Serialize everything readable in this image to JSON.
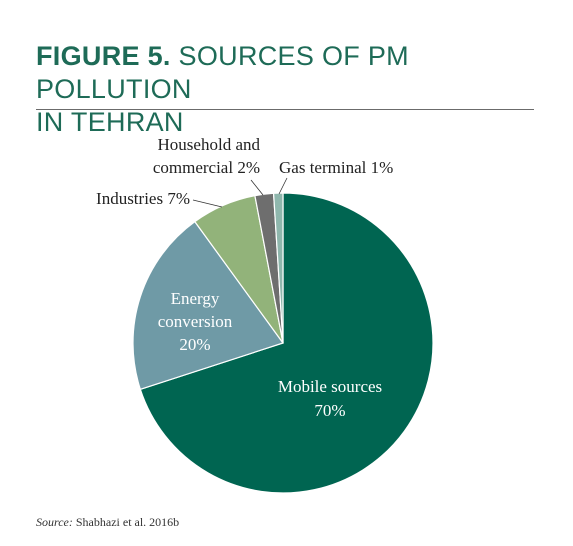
{
  "figure": {
    "number": "FIGURE 5.",
    "title_line1": "SOURCES OF PM POLLUTION",
    "title_line2": "IN TEHRAN"
  },
  "source": {
    "label": "Source:",
    "text": "Shabhazi et al. 2016b"
  },
  "chart_data": {
    "type": "pie",
    "title": "SOURCES OF PM POLLUTION IN TEHRAN",
    "unit": "%",
    "slices": [
      {
        "label_lines": [
          "Mobile sources",
          "70%"
        ],
        "value": 70,
        "color": "#006551",
        "label_inside": true
      },
      {
        "label_lines": [
          "Energy",
          "conversion",
          "20%"
        ],
        "value": 20,
        "color": "#6f9aa6",
        "label_inside": true
      },
      {
        "label_lines": [
          "Industries 7%"
        ],
        "value": 7,
        "color": "#92b37a",
        "label_inside": false
      },
      {
        "label_lines": [
          "Household and",
          "commercial 2%"
        ],
        "value": 2,
        "color": "#6e6e6e",
        "label_inside": false
      },
      {
        "label_lines": [
          "Gas terminal 1%"
        ],
        "value": 1,
        "color": "#8fb7ad",
        "label_inside": false
      }
    ]
  }
}
